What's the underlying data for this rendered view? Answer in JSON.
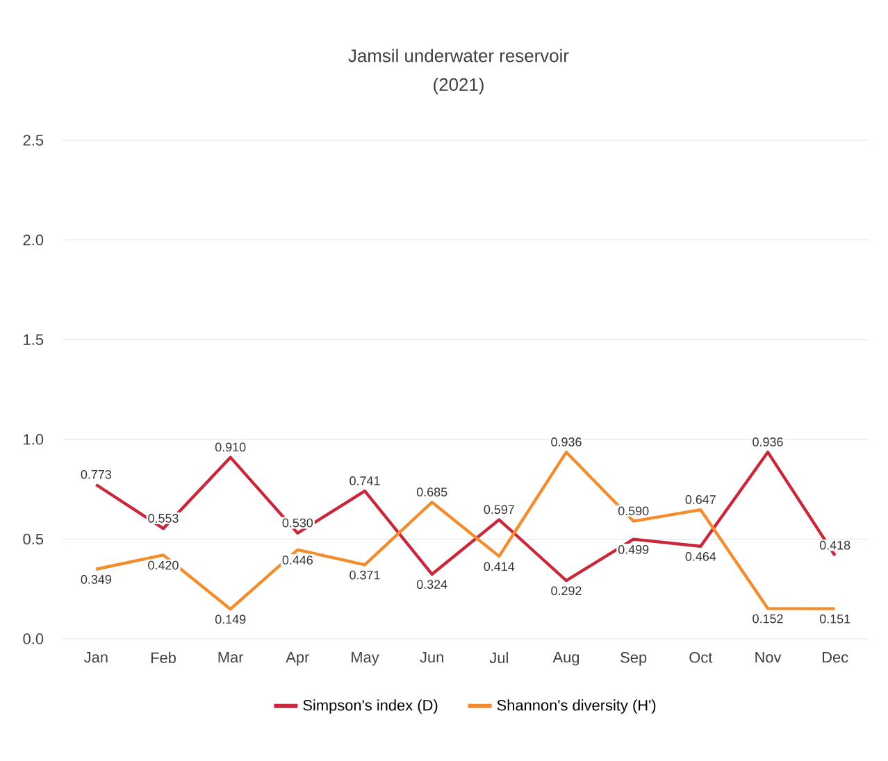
{
  "chart_data": {
    "type": "line",
    "title": "Jamsil underwater reservoir",
    "subtitle": "(2021)",
    "categories": [
      "Jan",
      "Feb",
      "Mar",
      "Apr",
      "May",
      "Jun",
      "Jul",
      "Aug",
      "Sep",
      "Oct",
      "Nov",
      "Dec"
    ],
    "series": [
      {
        "name": "Simpson's index (D)",
        "color": "#c8283a",
        "values": [
          0.773,
          0.553,
          0.91,
          0.53,
          0.741,
          0.324,
          0.597,
          0.292,
          0.499,
          0.464,
          0.936,
          0.418
        ],
        "value_labels": [
          "0.773",
          "0.553",
          "0.910",
          "0.530",
          "0.741",
          "0.324",
          "0.597",
          "0.292",
          "0.499",
          "0.464",
          "0.936",
          "0.418"
        ]
      },
      {
        "name": "Shannon's diversity (H')",
        "color": "#f28c2c",
        "values": [
          0.349,
          0.42,
          0.149,
          0.446,
          0.371,
          0.685,
          0.414,
          0.936,
          0.59,
          0.647,
          0.152,
          0.151
        ],
        "value_labels": [
          "0.349",
          "0.420",
          "0.149",
          "0.446",
          "0.371",
          "0.685",
          "0.414",
          "0.936",
          "0.590",
          "0.647",
          "0.152",
          "0.151"
        ]
      }
    ],
    "ylim": [
      0,
      2.5
    ],
    "yticks": [
      {
        "value": 0,
        "label": "0.0"
      },
      {
        "value": 0.5,
        "label": "0.5"
      },
      {
        "value": 1,
        "label": "1.0"
      },
      {
        "value": 1.5,
        "label": "1.5"
      },
      {
        "value": 2,
        "label": "2.0"
      },
      {
        "value": 2.5,
        "label": "2.5"
      }
    ],
    "grid": "y",
    "legend": "bottom",
    "marker": "none",
    "line_style": "solid"
  }
}
